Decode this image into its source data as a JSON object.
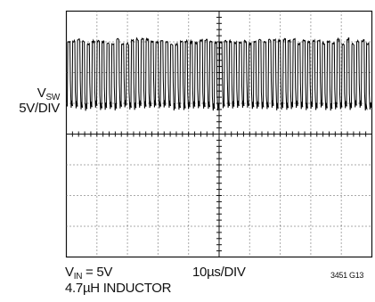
{
  "chart_data": {
    "type": "line",
    "title": "",
    "trace": {
      "symbol": "V",
      "subscript": "SW",
      "scale": "5V/DIV"
    },
    "time_scale": "10µs/DIV",
    "conditions": {
      "vin_symbol": "V",
      "vin_subscript": "IN",
      "vin_value": "= 5V",
      "inductor": "4.7µH INDUCTOR"
    },
    "figure_id": "3451 G13",
    "grid": true,
    "divisions": {
      "x": 10,
      "y": 8
    },
    "waveform": {
      "shape": "square",
      "high_level_div": 1.0,
      "low_level_div": 3.1,
      "pulses": 62
    }
  }
}
